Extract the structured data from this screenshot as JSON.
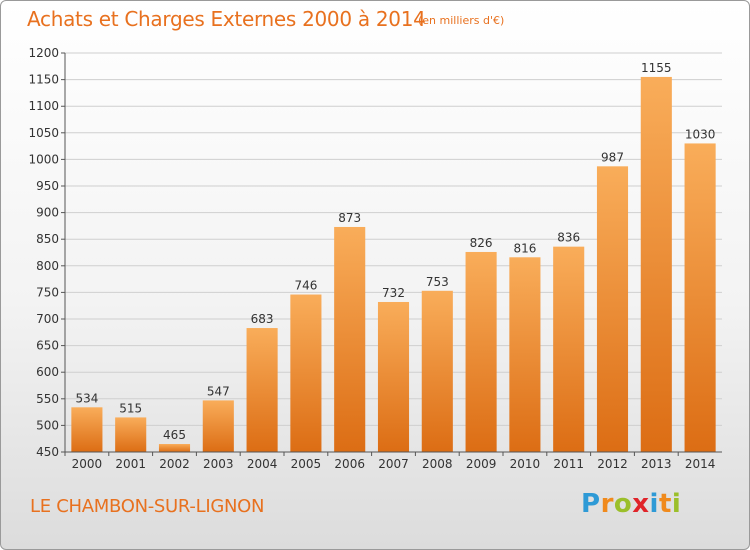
{
  "title": "Achats et Charges Externes 2000 à 2014",
  "unit_note": "(en milliers d'€)",
  "commune": "LE CHAMBON-SUR-LIGNON",
  "logo": {
    "letters": [
      "P",
      "r",
      "o",
      "x",
      "i",
      "t",
      "i"
    ],
    "colors": [
      "#2e9ad6",
      "#f08a1c",
      "#9bbf2a",
      "#e0242a",
      "#2e9ad6",
      "#f08a1c",
      "#9bbf2a"
    ]
  },
  "colors": {
    "bar_top": "#f9ad5a",
    "bar_bottom": "#dc6d14",
    "title": "#e8711f",
    "grid": "#cfcfcf"
  },
  "chart_data": {
    "type": "bar",
    "categories": [
      "2000",
      "2001",
      "2002",
      "2003",
      "2004",
      "2005",
      "2006",
      "2007",
      "2008",
      "2009",
      "2010",
      "2011",
      "2012",
      "2013",
      "2014"
    ],
    "values": [
      534,
      515,
      465,
      547,
      683,
      746,
      873,
      732,
      753,
      826,
      816,
      836,
      987,
      1155,
      1030
    ],
    "title": "Achats et Charges Externes 2000 à 2014",
    "xlabel": "",
    "ylabel": "",
    "ylim": [
      450,
      1200
    ],
    "yticks": [
      450,
      500,
      550,
      600,
      650,
      700,
      750,
      800,
      850,
      900,
      950,
      1000,
      1050,
      1100,
      1150,
      1200
    ],
    "grid": true
  }
}
